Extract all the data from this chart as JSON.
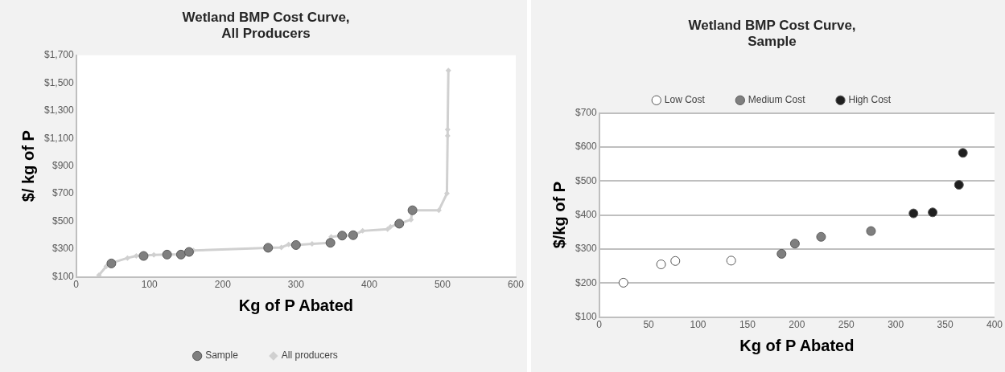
{
  "chart_data": [
    {
      "type": "line",
      "title": "Wetland BMP Cost Curve,\nAll Producers",
      "xlabel": "Kg of P Abated",
      "ylabel": "$/ kg of P",
      "xlim": [
        0,
        600
      ],
      "xticks": [
        0,
        100,
        200,
        300,
        400,
        500,
        600
      ],
      "ylim": [
        100,
        1700
      ],
      "yticks": [
        {
          "value": 100,
          "label": "$100"
        },
        {
          "value": 300,
          "label": "$300"
        },
        {
          "value": 500,
          "label": "$500"
        },
        {
          "value": 700,
          "label": "$700"
        },
        {
          "value": 900,
          "label": "$900"
        },
        {
          "value": 1100,
          "label": "$1,100"
        },
        {
          "value": 1300,
          "label": "$1,300"
        },
        {
          "value": 1500,
          "label": "$1,500"
        },
        {
          "value": 1700,
          "label": "$1,700"
        }
      ],
      "grid": false,
      "legend": "bottom",
      "series": [
        {
          "name": "All producers",
          "type": "line",
          "marker": "diamond",
          "color": "#d0d0d0",
          "x": [
            31,
            41,
            48,
            70,
            82,
            106,
            124,
            143,
            154,
            160,
            262,
            280,
            290,
            300,
            322,
            347,
            348,
            363,
            378,
            391,
            425,
            429,
            441,
            457,
            459,
            495,
            506,
            507,
            507,
            508
          ],
          "values": [
            112,
            176,
            200,
            236,
            251,
            259,
            261,
            261,
            280,
            290,
            310,
            313,
            334,
            330,
            338,
            346,
            389,
            398,
            400,
            432,
            445,
            462,
            484,
            513,
            581,
            581,
            702,
            1119,
            1163,
            1590
          ]
        },
        {
          "name": "Sample",
          "type": "scatter",
          "marker": "circle",
          "color": "#7f7f7f",
          "x": [
            48,
            92,
            124,
            143,
            154,
            262,
            300,
            347,
            363,
            378,
            441,
            459
          ],
          "values": [
            197,
            251,
            261,
            261,
            280,
            310,
            330,
            346,
            398,
            401,
            484,
            581
          ]
        }
      ]
    },
    {
      "type": "scatter",
      "title": "Wetland BMP Cost Curve,\nSample",
      "xlabel": "Kg of P Abated",
      "ylabel": "$/kg of P",
      "xlim": [
        0,
        400
      ],
      "xticks": [
        0,
        50,
        100,
        150,
        200,
        250,
        300,
        350,
        400
      ],
      "ylim": [
        100,
        700
      ],
      "yticks": [
        {
          "value": 100,
          "label": "$100"
        },
        {
          "value": 200,
          "label": "$200"
        },
        {
          "value": 300,
          "label": "$300"
        },
        {
          "value": 400,
          "label": "$400"
        },
        {
          "value": 500,
          "label": "$500"
        },
        {
          "value": 600,
          "label": "$600"
        },
        {
          "value": 700,
          "label": "$700"
        }
      ],
      "grid": "y",
      "legend": "top",
      "marker": "circle",
      "series": [
        {
          "name": "Low Cost",
          "color": "#ffffff",
          "x": [
            24.5,
            62.6,
            77,
            133.5
          ],
          "values": [
            201,
            255,
            265,
            266
          ]
        },
        {
          "name": "Medium Cost",
          "color": "#7f7f7f",
          "x": [
            184.5,
            198,
            224.5,
            275
          ],
          "values": [
            286,
            316,
            336,
            353
          ]
        },
        {
          "name": "High Cost",
          "color": "#1f1f1f",
          "x": [
            318,
            337.4,
            364,
            368
          ],
          "values": [
            405,
            408,
            489,
            583
          ]
        }
      ]
    }
  ]
}
